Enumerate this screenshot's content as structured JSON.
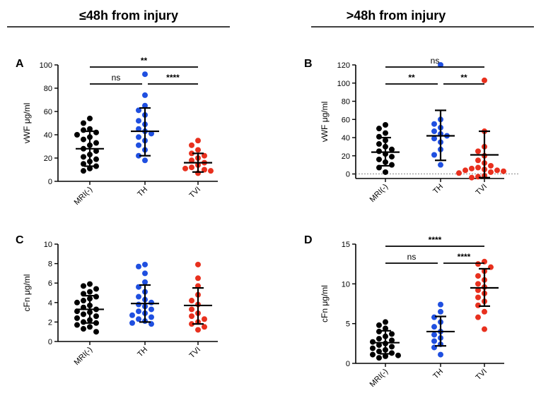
{
  "headings": [
    "≤48h from injury",
    ">48h from injury"
  ],
  "colors": {
    "MRI(-)": "#000000",
    "TH": "#1f4fe0",
    "TVI": "#e8301e"
  },
  "chart_data": [
    {
      "type": "scatter",
      "panel": "A",
      "title": "",
      "xlabel": "",
      "ylabel": "vWF μg/ml",
      "categories": [
        "MRI(-)",
        "TH",
        "TVI"
      ],
      "ylim": [
        0,
        100
      ],
      "yticks": [
        0,
        20,
        40,
        60,
        80,
        100
      ],
      "zero_line": false,
      "series": [
        {
          "name": "MRI(-)",
          "mean": 28,
          "sd_low": 13,
          "sd_high": 43,
          "values": [
            54,
            50,
            45,
            44,
            42,
            40,
            38,
            36,
            33,
            31,
            28,
            26,
            23,
            21,
            19,
            17,
            15,
            13,
            11,
            9
          ]
        },
        {
          "name": "TH",
          "mean": 43,
          "sd_low": 22,
          "sd_high": 63,
          "values": [
            92,
            74,
            65,
            61,
            57,
            52,
            49,
            45,
            43,
            41,
            38,
            35,
            31,
            27,
            22,
            18
          ]
        },
        {
          "name": "TVI",
          "mean": 16,
          "sd_low": 8,
          "sd_high": 24,
          "values": [
            35,
            31,
            27,
            24,
            22,
            20,
            18,
            16,
            14,
            12,
            11,
            10,
            9,
            7
          ]
        }
      ],
      "comparisons": [
        {
          "from": "MRI(-)",
          "to": "TVI",
          "label": "**",
          "level": 2
        },
        {
          "from": "MRI(-)",
          "to": "TH",
          "label": "ns",
          "level": 1
        },
        {
          "from": "TH",
          "to": "TVI",
          "label": "****",
          "level": 1
        }
      ]
    },
    {
      "type": "scatter",
      "panel": "B",
      "title": "",
      "xlabel": "",
      "ylabel": "vWF μg/ml",
      "categories": [
        "MRI(-)",
        "TH",
        "TVI"
      ],
      "ylim": [
        -5,
        120
      ],
      "yticks": [
        0,
        20,
        40,
        60,
        80,
        100,
        120
      ],
      "zero_line": true,
      "series": [
        {
          "name": "MRI(-)",
          "mean": 24,
          "sd_low": 9,
          "sd_high": 40,
          "values": [
            54,
            50,
            45,
            41,
            37,
            33,
            30,
            27,
            25,
            22,
            19,
            16,
            13,
            10,
            7,
            2
          ]
        },
        {
          "name": "TH",
          "mean": 42,
          "sd_low": 15,
          "sd_high": 70,
          "values": [
            120,
            60,
            55,
            51,
            47,
            44,
            42,
            39,
            35,
            27,
            21,
            10
          ]
        },
        {
          "name": "TVI",
          "mean": 21,
          "sd_low": -4,
          "sd_high": 47,
          "values": [
            103,
            47,
            30,
            25,
            20,
            15,
            12,
            9,
            7,
            6,
            5,
            4,
            4,
            3,
            2,
            1,
            -2,
            -3,
            -4
          ]
        }
      ],
      "comparisons": [
        {
          "from": "MRI(-)",
          "to": "TVI",
          "label": "ns",
          "level": 2
        },
        {
          "from": "MRI(-)",
          "to": "TH",
          "label": "**",
          "level": 1
        },
        {
          "from": "TH",
          "to": "TVI",
          "label": "**",
          "level": 1
        }
      ]
    },
    {
      "type": "scatter",
      "panel": "C",
      "title": "",
      "xlabel": "",
      "ylabel": "cFn μg/ml",
      "categories": [
        "MRI(-)",
        "TH",
        "TVI"
      ],
      "ylim": [
        0,
        10
      ],
      "yticks": [
        0,
        2,
        4,
        6,
        8,
        10
      ],
      "zero_line": false,
      "series": [
        {
          "name": "MRI(-)",
          "mean": 3.3,
          "sd_low": 1.9,
          "sd_high": 4.7,
          "values": [
            5.9,
            5.7,
            5.4,
            5.1,
            4.9,
            4.6,
            4.4,
            4.2,
            4.0,
            3.7,
            3.5,
            3.3,
            3.1,
            3.0,
            2.8,
            2.6,
            2.4,
            2.2,
            2.0,
            1.9,
            1.7,
            1.5,
            1.3,
            1.0
          ]
        },
        {
          "name": "TH",
          "mean": 3.9,
          "sd_low": 2.0,
          "sd_high": 5.8,
          "values": [
            7.9,
            7.7,
            7.0,
            6.1,
            5.6,
            5.1,
            4.6,
            4.3,
            4.0,
            3.8,
            3.6,
            3.3,
            3.1,
            2.9,
            2.7,
            2.5,
            2.3,
            2.1,
            1.9,
            1.8
          ]
        },
        {
          "name": "TVI",
          "mean": 3.7,
          "sd_low": 1.8,
          "sd_high": 5.5,
          "values": [
            7.9,
            6.5,
            5.7,
            4.8,
            4.2,
            3.8,
            3.3,
            2.9,
            2.6,
            2.3,
            2.0,
            1.8,
            1.5,
            1.2
          ]
        }
      ],
      "comparisons": []
    },
    {
      "type": "scatter",
      "panel": "D",
      "title": "",
      "xlabel": "",
      "ylabel": "cFn μg/ml",
      "categories": [
        "MRI(-)",
        "TH",
        "TVI"
      ],
      "ylim": [
        0,
        15
      ],
      "yticks": [
        0,
        5,
        10,
        15
      ],
      "zero_line": false,
      "series": [
        {
          "name": "MRI(-)",
          "mean": 2.6,
          "sd_low": 1.2,
          "sd_high": 4.1,
          "values": [
            5.2,
            4.8,
            4.4,
            4.0,
            3.7,
            3.4,
            3.1,
            2.9,
            2.7,
            2.5,
            2.3,
            2.1,
            1.9,
            1.7,
            1.5,
            1.3,
            1.1,
            1.0,
            0.9,
            0.7
          ]
        },
        {
          "name": "TH",
          "mean": 4.0,
          "sd_low": 2.2,
          "sd_high": 5.9,
          "values": [
            7.4,
            6.5,
            5.8,
            5.2,
            4.6,
            4.0,
            3.6,
            3.2,
            2.8,
            2.4,
            2.0,
            1.1
          ]
        },
        {
          "name": "TVI",
          "mean": 9.5,
          "sd_low": 7.2,
          "sd_high": 11.9,
          "values": [
            12.8,
            12.5,
            12.1,
            11.6,
            11.0,
            10.5,
            10.0,
            9.6,
            9.2,
            8.8,
            8.3,
            7.8,
            7.3,
            6.5,
            5.8,
            4.3
          ]
        }
      ],
      "comparisons": [
        {
          "from": "MRI(-)",
          "to": "TVI",
          "label": "****",
          "level": 2
        },
        {
          "from": "MRI(-)",
          "to": "TH",
          "label": "ns",
          "level": 1
        },
        {
          "from": "TH",
          "to": "TVI",
          "label": "****",
          "level": 1
        }
      ]
    }
  ]
}
